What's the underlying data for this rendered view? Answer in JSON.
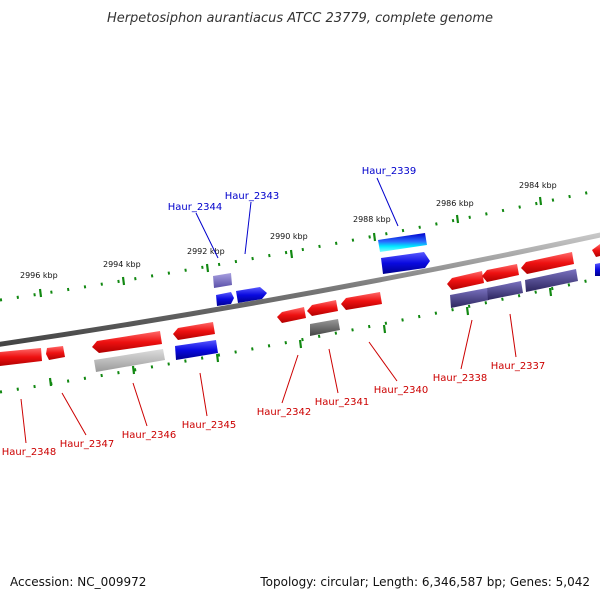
{
  "title": "Herpetosiphon aurantiacus ATCC 23779, complete genome",
  "footer": {
    "accession": "Accession: NC_009972",
    "topology": "Topology: circular; Length: 6,346,587 bp; Genes: 5,042"
  },
  "colors": {
    "forward_gene": "#ee1111",
    "reverse_gene": "#0a0ae0",
    "label_red": "#cc0000",
    "label_blue": "#0000cc",
    "grey_gene": "#999999",
    "purple_gene": "#4a3f8c",
    "ticks": "#118811",
    "backbone": "#888888"
  },
  "scale_labels": [
    "2984 kbp",
    "2986 kbp",
    "2988 kbp",
    "2990 kbp",
    "2992 kbp",
    "2994 kbp",
    "2996 kbp"
  ],
  "upper_labels": [
    "Haur_2339",
    "Haur_2343",
    "Haur_2344"
  ],
  "lower_labels": [
    "Haur_2337",
    "Haur_2338",
    "Haur_2340",
    "Haur_2341",
    "Haur_2342",
    "Haur_2345",
    "Haur_2346",
    "Haur_2347",
    "Haur_2348"
  ]
}
